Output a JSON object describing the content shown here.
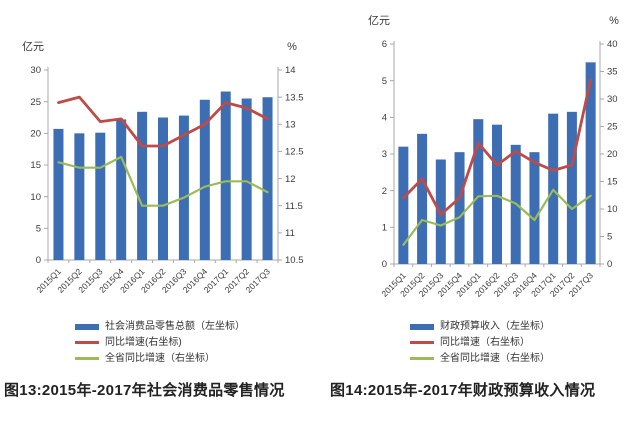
{
  "colors": {
    "bar_blue": "#3D6EB4",
    "line_red": "#BE4B48",
    "line_green": "#9BBB59",
    "axis_gray": "#a8a8a8",
    "tick_text": "#3c3c3c"
  },
  "chart_data": [
    {
      "type": "bar",
      "title": "",
      "caption": "图13:2015年-2017年社会消费品零售情况",
      "categories": [
        "2015Q1",
        "2015Q2",
        "2015Q3",
        "2015Q4",
        "2016Q1",
        "2016Q2",
        "2016Q3",
        "2016Q4",
        "2017Q1",
        "2017Q2",
        "2017Q3"
      ],
      "left_axis": {
        "title": "亿元",
        "min": 0,
        "max": 30,
        "step": 5
      },
      "right_axis": {
        "title": "%",
        "min": 10.5,
        "max": 14,
        "step": 0.5
      },
      "grid": false,
      "legend_position": "bottom",
      "series": [
        {
          "name": "社会消费品零售总额（左坐标）",
          "kind": "bar",
          "axis": "left",
          "color": "#3D6EB4",
          "values": [
            20.7,
            20.0,
            20.1,
            22.2,
            23.4,
            22.5,
            22.8,
            25.3,
            26.6,
            25.5,
            25.7
          ]
        },
        {
          "name": "同比增速(右坐标)",
          "kind": "line",
          "axis": "right",
          "color": "#BE4B48",
          "values": [
            13.4,
            13.5,
            13.05,
            13.1,
            12.6,
            12.6,
            12.8,
            13.0,
            13.4,
            13.3,
            13.1
          ]
        },
        {
          "name": "全省同比增速（右坐标）",
          "kind": "line",
          "axis": "right",
          "color": "#9BBB59",
          "values": [
            12.3,
            12.2,
            12.2,
            12.4,
            11.5,
            11.5,
            11.65,
            11.85,
            11.95,
            11.95,
            11.75
          ]
        }
      ]
    },
    {
      "type": "bar",
      "title": "",
      "caption": "图14:2015年-2017年财政预算收入情况",
      "categories": [
        "2015Q1",
        "2015Q2",
        "2015Q3",
        "2015Q4",
        "2016Q1",
        "2016Q2",
        "2016Q3",
        "2016Q4",
        "2017Q1",
        "2017Q2",
        "2017Q3"
      ],
      "left_axis": {
        "title": "亿元",
        "min": 0,
        "max": 6,
        "step": 1
      },
      "right_axis": {
        "title": "%",
        "min": 0,
        "max": 40,
        "step": 5
      },
      "grid": false,
      "legend_position": "bottom",
      "series": [
        {
          "name": "财政预算收入（左坐标）",
          "kind": "bar",
          "axis": "left",
          "color": "#3D6EB4",
          "values": [
            3.2,
            3.55,
            2.85,
            3.05,
            3.95,
            3.8,
            3.25,
            3.05,
            4.1,
            4.15,
            5.5
          ]
        },
        {
          "name": "同比增速（右坐标）",
          "kind": "line",
          "axis": "right",
          "color": "#BE4B48",
          "values": [
            12,
            15.5,
            9,
            12,
            22,
            18,
            20.5,
            18.5,
            17,
            18,
            33.5
          ]
        },
        {
          "name": "全省同比增速（右坐标）",
          "kind": "line",
          "axis": "right",
          "color": "#9BBB59",
          "values": [
            3.5,
            8,
            7,
            8.5,
            12.3,
            12.4,
            11,
            8,
            13.5,
            10,
            12.4
          ]
        }
      ]
    }
  ]
}
